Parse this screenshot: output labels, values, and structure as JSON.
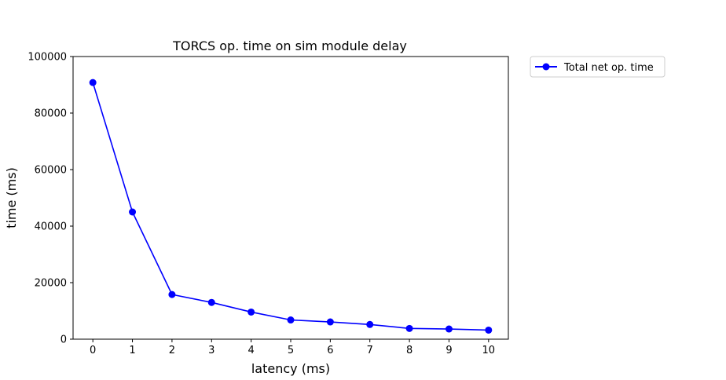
{
  "chart_data": {
    "type": "line",
    "title": "TORCS op. time on sim module delay",
    "xlabel": "latency (ms)",
    "ylabel": "time (ms)",
    "xlim": [
      -0.5,
      10.5
    ],
    "ylim": [
      0,
      100000
    ],
    "xticks": [
      0,
      1,
      2,
      3,
      4,
      5,
      6,
      7,
      8,
      9,
      10
    ],
    "yticks": [
      0,
      20000,
      40000,
      60000,
      80000,
      100000
    ],
    "grid": false,
    "legend": "outside-top-right",
    "series": [
      {
        "name": "Total net op. time",
        "color": "#0000ff",
        "marker": "circle",
        "x": [
          0,
          1,
          2,
          3,
          4,
          5,
          6,
          7,
          8,
          9,
          10
        ],
        "y": [
          90800,
          45000,
          15800,
          13000,
          9600,
          6800,
          6100,
          5200,
          3800,
          3600,
          3200
        ]
      }
    ]
  }
}
